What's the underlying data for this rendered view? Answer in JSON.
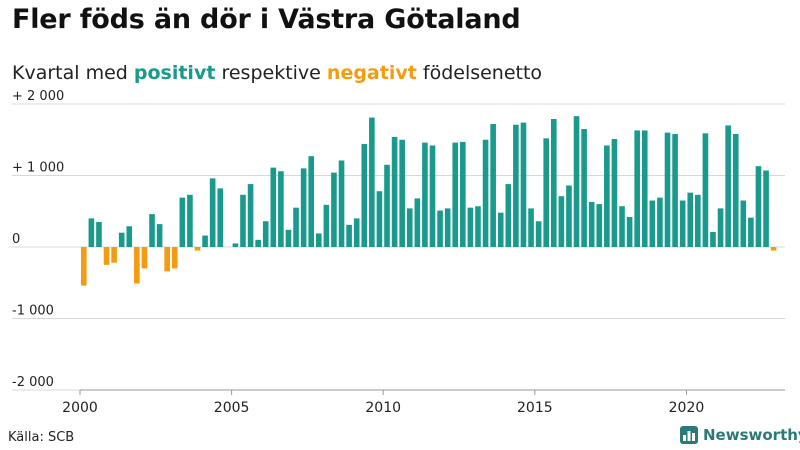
{
  "header": {
    "title": "Fler föds än dör i Västra Götaland",
    "subtitle_prefix": "Kvartal med",
    "subtitle_positive": "positivt",
    "subtitle_middle": "respektive",
    "subtitle_negative": "negativt",
    "subtitle_suffix": "födelsenetto"
  },
  "footer": {
    "source": "Källa: SCB",
    "brand": "Newsworthy"
  },
  "colors": {
    "positive": "#1a9a8c",
    "negative": "#f39c12",
    "grid": "#d8d8d8",
    "brand": "#2b7a78"
  },
  "chart_data": {
    "type": "bar",
    "title": "Fler föds än dör i Västra Götaland",
    "xlabel": "",
    "ylabel": "",
    "x_start": 2000.0,
    "step": 0.25,
    "xlim": [
      2000,
      2023.25
    ],
    "ylim": [
      -2000,
      2000
    ],
    "yticks": [
      2000,
      1000,
      0,
      -1000,
      -2000
    ],
    "ytick_labels": [
      "+ 2 000",
      "+ 1 000",
      "0",
      "-1 000",
      "-2 000"
    ],
    "xticks": [
      2000,
      2005,
      2010,
      2015,
      2020
    ],
    "xtick_labels": [
      "2000",
      "2005",
      "2010",
      "2015",
      "2020"
    ],
    "values": [
      -540,
      400,
      350,
      -250,
      -220,
      200,
      290,
      -510,
      -300,
      460,
      320,
      -340,
      -300,
      690,
      730,
      -50,
      160,
      960,
      820,
      0,
      50,
      730,
      880,
      100,
      360,
      1110,
      1060,
      240,
      550,
      1100,
      1270,
      190,
      590,
      1040,
      1210,
      310,
      400,
      1440,
      1810,
      780,
      1150,
      1540,
      1500,
      540,
      680,
      1460,
      1420,
      510,
      540,
      1460,
      1470,
      550,
      570,
      1500,
      1720,
      480,
      880,
      1710,
      1740,
      540,
      360,
      1520,
      1790,
      710,
      860,
      1830,
      1650,
      630,
      600,
      1420,
      1510,
      570,
      420,
      1630,
      1630,
      650,
      690,
      1600,
      1580,
      650,
      760,
      730,
      1590,
      210,
      540,
      1700,
      1580,
      650,
      410,
      1130,
      1070,
      -50
    ]
  }
}
